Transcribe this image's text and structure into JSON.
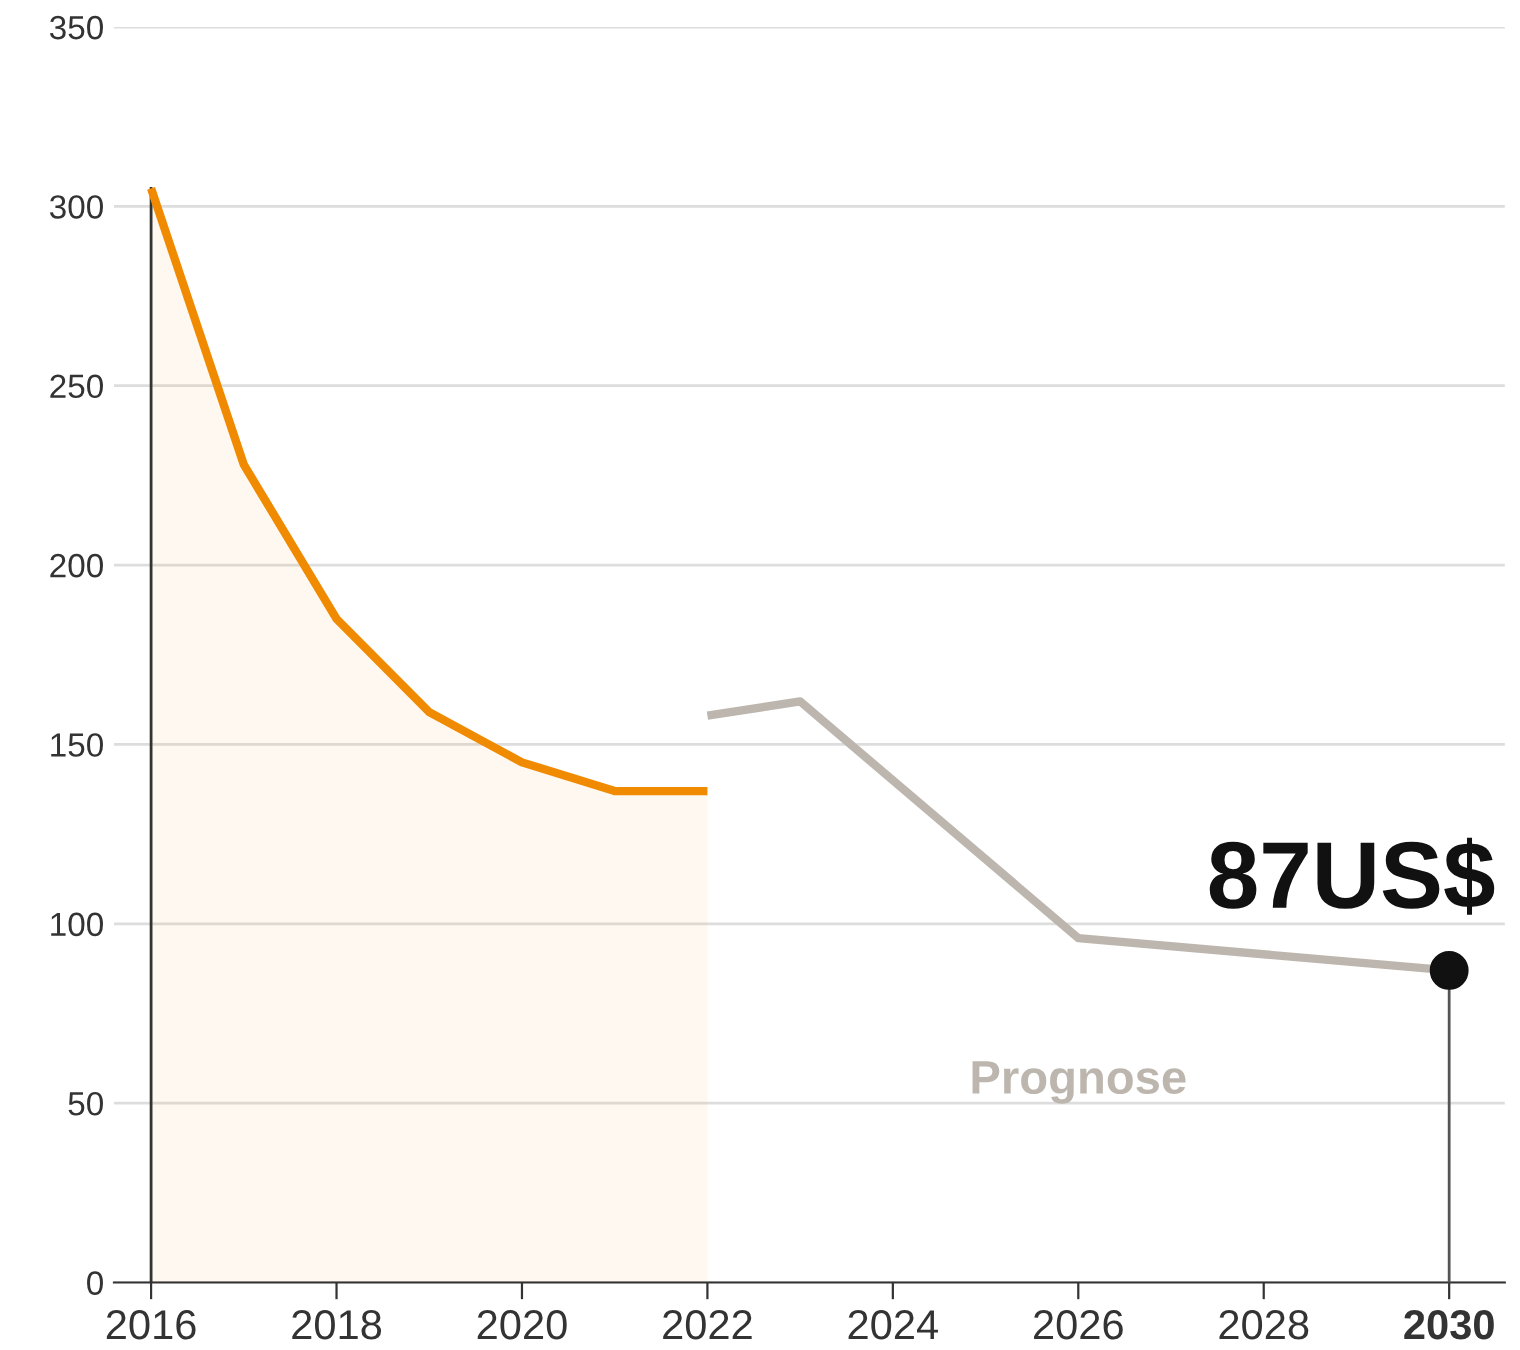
{
  "chart_data": {
    "type": "line",
    "x": [
      2016,
      2017,
      2018,
      2019,
      2020,
      2021,
      2022
    ],
    "series": [
      {
        "type": "area",
        "color": "#f08a00",
        "values": [
          305,
          228,
          185,
          159,
          145,
          137,
          137
        ]
      },
      {
        "name": "Prognose",
        "color": "#bdb6ae",
        "x": [
          2022,
          2023,
          2026,
          2030
        ],
        "values": [
          158,
          162,
          96,
          87
        ]
      }
    ],
    "annotations": [
      {
        "text": "87US$",
        "x": 2030,
        "y": 87
      }
    ],
    "xlim": [
      2015.6,
      2030.6
    ],
    "ylim": [
      0,
      350
    ],
    "xticks": [
      2016,
      2018,
      2020,
      2022,
      2024,
      2026,
      2028,
      2030
    ],
    "yticks": [
      0,
      50,
      100,
      150,
      200,
      250,
      300,
      350
    ],
    "grid": "y",
    "legend": false
  }
}
